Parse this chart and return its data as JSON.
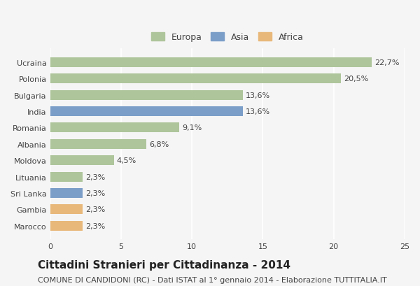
{
  "categories": [
    "Marocco",
    "Gambia",
    "Sri Lanka",
    "Lituania",
    "Moldova",
    "Albania",
    "Romania",
    "India",
    "Bulgaria",
    "Polonia",
    "Ucraina"
  ],
  "values": [
    2.3,
    2.3,
    2.3,
    2.3,
    4.5,
    6.8,
    9.1,
    13.6,
    13.6,
    20.5,
    22.7
  ],
  "labels": [
    "2,3%",
    "2,3%",
    "2,3%",
    "2,3%",
    "4,5%",
    "6,8%",
    "9,1%",
    "13,6%",
    "13,6%",
    "20,5%",
    "22,7%"
  ],
  "continents": [
    "Africa",
    "Africa",
    "Asia",
    "Europa",
    "Europa",
    "Europa",
    "Europa",
    "Asia",
    "Europa",
    "Europa",
    "Europa"
  ],
  "colors": {
    "Europa": "#aec49a",
    "Asia": "#7b9ec9",
    "Africa": "#e8b87a"
  },
  "legend_labels": [
    "Europa",
    "Asia",
    "Africa"
  ],
  "xlim": [
    0,
    25
  ],
  "xticks": [
    0,
    5,
    10,
    15,
    20,
    25
  ],
  "title": "Cittadini Stranieri per Cittadinanza - 2014",
  "subtitle": "COMUNE DI CANDIDONI (RC) - Dati ISTAT al 1° gennaio 2014 - Elaborazione TUTTITALIA.IT",
  "title_fontsize": 11,
  "subtitle_fontsize": 8,
  "label_fontsize": 8,
  "tick_fontsize": 8,
  "legend_fontsize": 9,
  "bg_color": "#f5f5f5",
  "bar_edge_color": "none",
  "grid_color": "#ffffff",
  "bar_height": 0.6
}
